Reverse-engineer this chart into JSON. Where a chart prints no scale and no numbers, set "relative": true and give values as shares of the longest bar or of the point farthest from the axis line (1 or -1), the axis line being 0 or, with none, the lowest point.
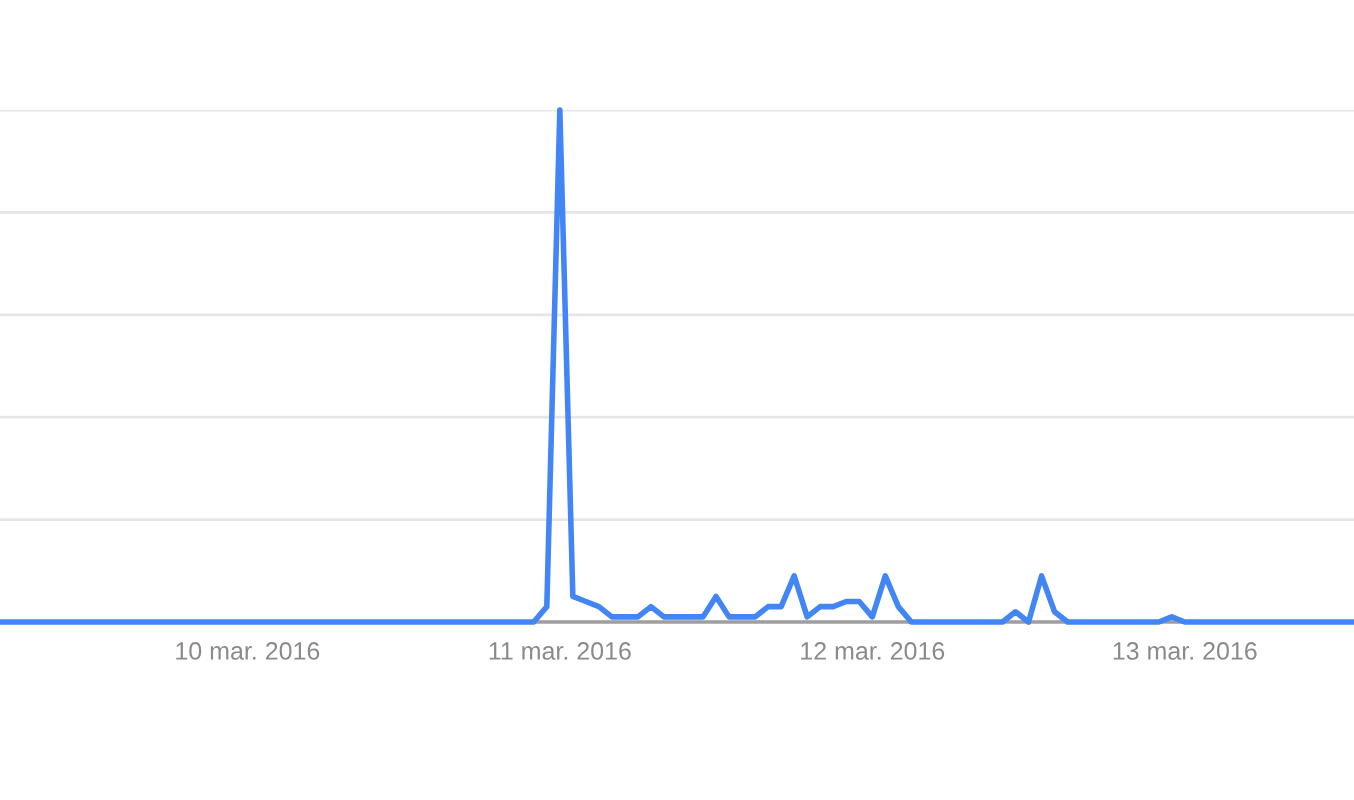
{
  "chart_data": {
    "type": "line",
    "relative": true,
    "x": [
      "2016-03-09T05:00",
      "2016-03-09T06:00",
      "2016-03-09T07:00",
      "2016-03-09T08:00",
      "2016-03-09T09:00",
      "2016-03-09T10:00",
      "2016-03-09T11:00",
      "2016-03-09T12:00",
      "2016-03-09T13:00",
      "2016-03-09T14:00",
      "2016-03-09T15:00",
      "2016-03-09T16:00",
      "2016-03-09T17:00",
      "2016-03-09T18:00",
      "2016-03-09T19:00",
      "2016-03-09T20:00",
      "2016-03-09T21:00",
      "2016-03-09T22:00",
      "2016-03-09T23:00",
      "2016-03-10T00:00",
      "2016-03-10T01:00",
      "2016-03-10T02:00",
      "2016-03-10T03:00",
      "2016-03-10T04:00",
      "2016-03-10T05:00",
      "2016-03-10T06:00",
      "2016-03-10T07:00",
      "2016-03-10T08:00",
      "2016-03-10T09:00",
      "2016-03-10T10:00",
      "2016-03-10T11:00",
      "2016-03-10T12:00",
      "2016-03-10T13:00",
      "2016-03-10T14:00",
      "2016-03-10T15:00",
      "2016-03-10T16:00",
      "2016-03-10T17:00",
      "2016-03-10T18:00",
      "2016-03-10T19:00",
      "2016-03-10T20:00",
      "2016-03-10T21:00",
      "2016-03-10T22:00",
      "2016-03-10T23:00",
      "2016-03-11T00:00",
      "2016-03-11T01:00",
      "2016-03-11T02:00",
      "2016-03-11T03:00",
      "2016-03-11T04:00",
      "2016-03-11T05:00",
      "2016-03-11T06:00",
      "2016-03-11T07:00",
      "2016-03-11T08:00",
      "2016-03-11T09:00",
      "2016-03-11T10:00",
      "2016-03-11T11:00",
      "2016-03-11T12:00",
      "2016-03-11T13:00",
      "2016-03-11T14:00",
      "2016-03-11T15:00",
      "2016-03-11T16:00",
      "2016-03-11T17:00",
      "2016-03-11T18:00",
      "2016-03-11T19:00",
      "2016-03-11T20:00",
      "2016-03-11T21:00",
      "2016-03-11T22:00",
      "2016-03-11T23:00",
      "2016-03-12T00:00",
      "2016-03-12T01:00",
      "2016-03-12T02:00",
      "2016-03-12T03:00",
      "2016-03-12T04:00",
      "2016-03-12T05:00",
      "2016-03-12T06:00",
      "2016-03-12T07:00",
      "2016-03-12T08:00",
      "2016-03-12T09:00",
      "2016-03-12T10:00",
      "2016-03-12T11:00",
      "2016-03-12T12:00",
      "2016-03-12T13:00",
      "2016-03-12T14:00",
      "2016-03-12T15:00",
      "2016-03-12T16:00",
      "2016-03-12T17:00",
      "2016-03-12T18:00",
      "2016-03-12T19:00",
      "2016-03-12T20:00",
      "2016-03-12T21:00",
      "2016-03-12T22:00",
      "2016-03-12T23:00",
      "2016-03-13T00:00",
      "2016-03-13T01:00",
      "2016-03-13T02:00",
      "2016-03-13T03:00",
      "2016-03-13T04:00",
      "2016-03-13T05:00",
      "2016-03-13T06:00",
      "2016-03-13T07:00",
      "2016-03-13T08:00",
      "2016-03-13T09:00",
      "2016-03-13T10:00",
      "2016-03-13T11:00",
      "2016-03-13T12:00",
      "2016-03-13T13:00"
    ],
    "series": [
      {
        "color": "#4285f4",
        "values": [
          0,
          0,
          0,
          0,
          0,
          0,
          0,
          0,
          0,
          0,
          0,
          0,
          0,
          0,
          0,
          0,
          0,
          0,
          0,
          0,
          0,
          0,
          0,
          0,
          0,
          0,
          0,
          0,
          0,
          0,
          0,
          0,
          0,
          0,
          0,
          0,
          0,
          0,
          0,
          0,
          0,
          0,
          0.03,
          1,
          0.05,
          0.04,
          0.03,
          0.01,
          0.01,
          0.01,
          0.03,
          0.01,
          0.01,
          0.01,
          0.01,
          0.05,
          0.01,
          0.01,
          0.01,
          0.03,
          0.03,
          0.09,
          0.01,
          0.03,
          0.03,
          0.04,
          0.04,
          0.01,
          0.09,
          0.03,
          0,
          0,
          0,
          0,
          0,
          0,
          0,
          0,
          0.02,
          0,
          0.09,
          0.02,
          0,
          0,
          0,
          0,
          0,
          0,
          0,
          0,
          0.01,
          0,
          0,
          0,
          0,
          0,
          0,
          0,
          0,
          0,
          0,
          0,
          0,
          0,
          0
        ]
      }
    ],
    "xlim": [
      "2016-03-09T05:00",
      "2016-03-13T13:00"
    ],
    "xticks": [
      {
        "value": "2016-03-10T00:00",
        "label": "10 mar. 2016"
      },
      {
        "value": "2016-03-11T00:00",
        "label": "11 mar. 2016"
      },
      {
        "value": "2016-03-12T00:00",
        "label": "12 mar. 2016"
      },
      {
        "value": "2016-03-13T00:00",
        "label": "13 mar. 2016"
      }
    ],
    "grid": "y",
    "marker": "none",
    "line_style": "solid"
  }
}
